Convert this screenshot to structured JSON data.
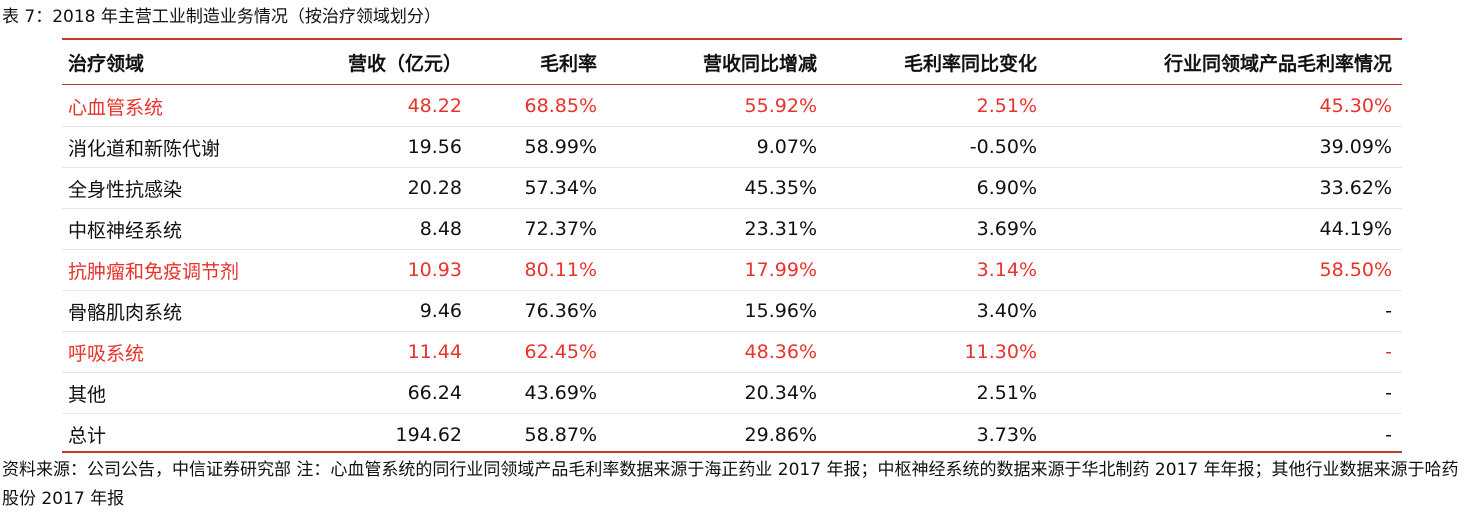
{
  "caption": "表 7：2018 年主营工业制造业务情况（按治疗领域划分）",
  "columns": [
    "治疗领域",
    "营收（亿元）",
    "毛利率",
    "营收同比增减",
    "毛利率同比变化",
    "行业同领域产品毛利率情况"
  ],
  "rows": [
    {
      "highlight": true,
      "cells": [
        "心血管系统",
        "48.22",
        "68.85%",
        "55.92%",
        "2.51%",
        "45.30%"
      ]
    },
    {
      "highlight": false,
      "cells": [
        "消化道和新陈代谢",
        "19.56",
        "58.99%",
        "9.07%",
        "-0.50%",
        "39.09%"
      ]
    },
    {
      "highlight": false,
      "cells": [
        "全身性抗感染",
        "20.28",
        "57.34%",
        "45.35%",
        "6.90%",
        "33.62%"
      ]
    },
    {
      "highlight": false,
      "cells": [
        "中枢神经系统",
        "8.48",
        "72.37%",
        "23.31%",
        "3.69%",
        "44.19%"
      ]
    },
    {
      "highlight": true,
      "cells": [
        "抗肿瘤和免疫调节剂",
        "10.93",
        "80.11%",
        "17.99%",
        "3.14%",
        "58.50%"
      ]
    },
    {
      "highlight": false,
      "cells": [
        "骨骼肌肉系统",
        "9.46",
        "76.36%",
        "15.96%",
        "3.40%",
        "-"
      ]
    },
    {
      "highlight": true,
      "cells": [
        "呼吸系统",
        "11.44",
        "62.45%",
        "48.36%",
        "11.30%",
        "-"
      ]
    },
    {
      "highlight": false,
      "cells": [
        "其他",
        "66.24",
        "43.69%",
        "20.34%",
        "2.51%",
        "-"
      ]
    },
    {
      "highlight": false,
      "cells": [
        "总计",
        "194.62",
        "58.87%",
        "29.86%",
        "3.73%",
        "-"
      ]
    }
  ],
  "note": "资料来源：公司公告，中信证券研究部 注：心血管系统的同行业同领域产品毛利率数据来源于海正药业 2017 年报；中枢神经系统的数据来源于华北制药 2017 年年报；其他行业数据来源于哈药股份 2017 年报",
  "colors": {
    "rule": "#c0392b",
    "highlight_text": "#e8322c",
    "text": "#111111"
  }
}
